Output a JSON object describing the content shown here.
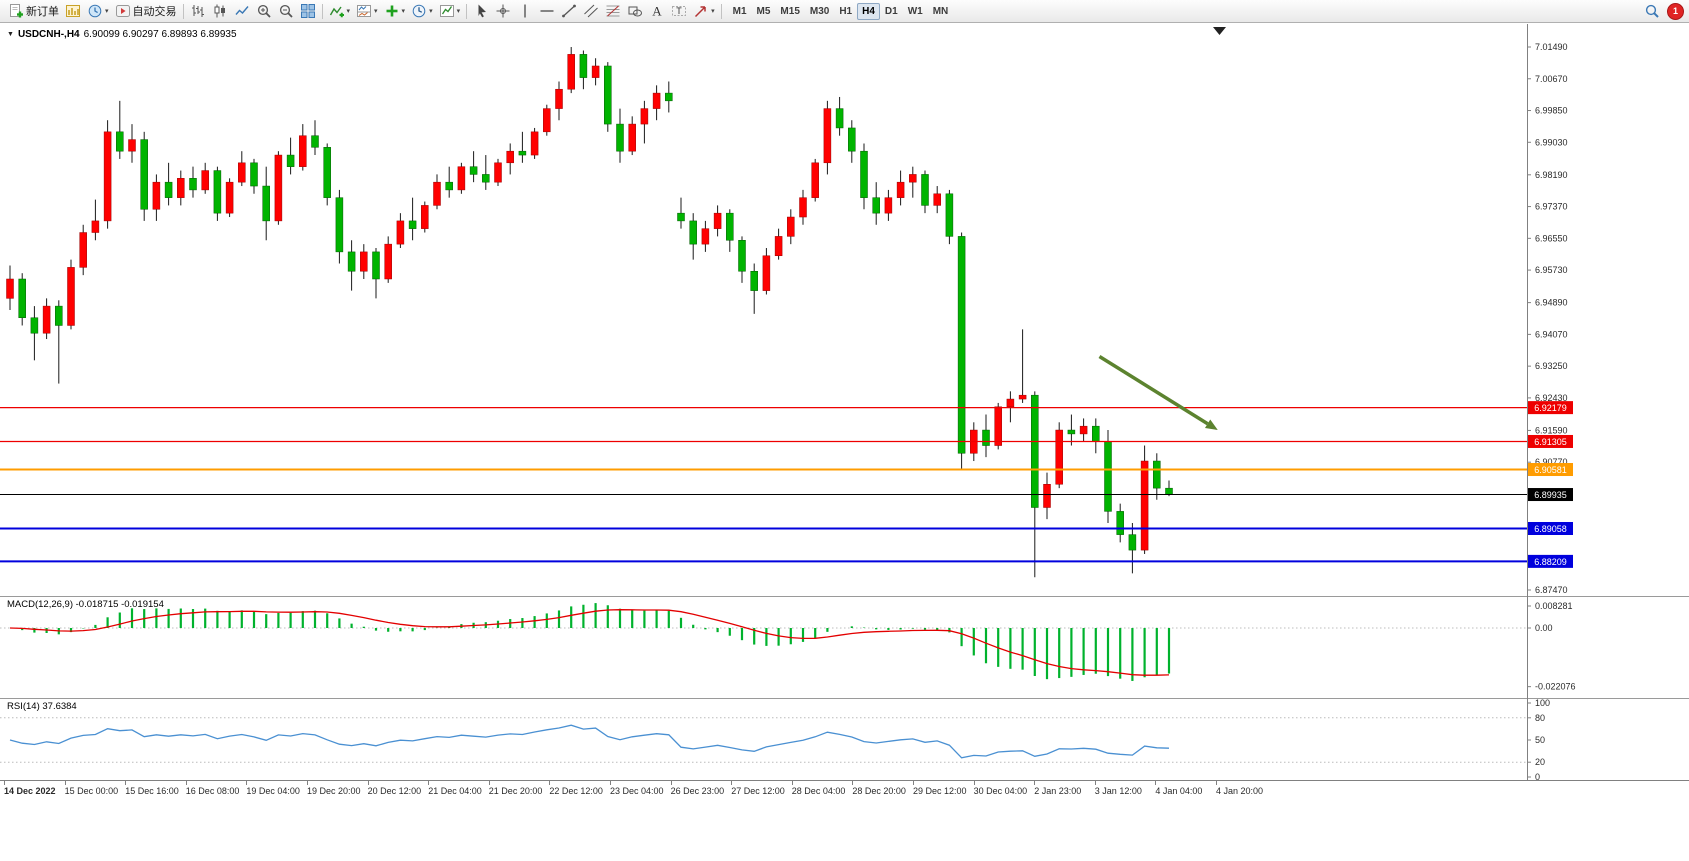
{
  "toolbar": {
    "buttons_left": [
      {
        "name": "new-order",
        "icon": "new-order",
        "label": "新订单"
      },
      {
        "name": "charts",
        "icon": "charts"
      },
      {
        "name": "profiles",
        "icon": "profiles",
        "caret": true
      },
      {
        "name": "auto-trading",
        "icon": "auto-trading",
        "label": "自动交易"
      },
      {
        "sep": true
      },
      {
        "name": "bar-chart",
        "icon": "bar-chart"
      },
      {
        "name": "candlestick-chart",
        "icon": "candlestick"
      },
      {
        "name": "line-chart",
        "icon": "line-chart"
      },
      {
        "name": "zoom-in",
        "icon": "zoom-in"
      },
      {
        "name": "zoom-out",
        "icon": "zoom-out"
      },
      {
        "name": "tile-windows",
        "icon": "tile-windows"
      },
      {
        "sep": true
      },
      {
        "name": "indicators",
        "icon": "indicators",
        "caret": true
      },
      {
        "name": "indicator-windows",
        "icon": "indicator-window",
        "caret": true
      },
      {
        "name": "add-object",
        "icon": "objects-add",
        "caret": true
      },
      {
        "name": "periods",
        "icon": "period",
        "caret": true
      },
      {
        "name": "templates",
        "icon": "templates",
        "caret": true
      },
      {
        "sep": true
      },
      {
        "name": "cursor",
        "icon": "cursor"
      },
      {
        "name": "crosshair",
        "icon": "crosshair"
      },
      {
        "name": "vertical-line",
        "icon": "vline"
      },
      {
        "name": "horizontal-line",
        "icon": "hline"
      },
      {
        "name": "trendline",
        "icon": "trendline"
      },
      {
        "name": "equidistant-channel",
        "icon": "channel"
      },
      {
        "name": "fibonacci",
        "icon": "fibonacci"
      },
      {
        "name": "shapes",
        "icon": "shapes"
      },
      {
        "name": "text",
        "icon": "text"
      },
      {
        "name": "text-label",
        "icon": "label"
      },
      {
        "name": "arrows",
        "icon": "arrows",
        "caret": true
      },
      {
        "sep": true
      }
    ],
    "timeframes": [
      "M1",
      "M5",
      "M15",
      "M30",
      "H1",
      "H4",
      "D1",
      "W1",
      "MN"
    ],
    "active_timeframe": "H4",
    "notification_count": "1"
  },
  "chart": {
    "title_symbol": "USDCNH-,H4",
    "title_ohlc": "6.90099 6.90297 6.89893 6.89935",
    "price_axis": [
      "7.01490",
      "7.00670",
      "6.99850",
      "6.99030",
      "6.98190",
      "6.97370",
      "6.96550",
      "6.95730",
      "6.94890",
      "6.94070",
      "6.93250",
      "6.92430",
      "6.91590",
      "6.90770",
      "6.87470"
    ],
    "time_axis": [
      "14 Dec 2022",
      "15 Dec 00:00",
      "15 Dec 16:00",
      "16 Dec 08:00",
      "19 Dec 04:00",
      "19 Dec 20:00",
      "20 Dec 12:00",
      "21 Dec 04:00",
      "21 Dec 20:00",
      "22 Dec 12:00",
      "23 Dec 04:00",
      "26 Dec 23:00",
      "27 Dec 12:00",
      "28 Dec 04:00",
      "28 Dec 20:00",
      "29 Dec 12:00",
      "30 Dec 04:00",
      "2 Jan 23:00",
      "3 Jan 12:00",
      "4 Jan 04:00",
      "4 Jan 20:00"
    ],
    "lines": [
      {
        "label": "6.92179",
        "value": 6.92179,
        "color": "#ee0000",
        "width": 1.2
      },
      {
        "label": "6.91305",
        "value": 6.91305,
        "color": "#ee0000",
        "width": 1.2
      },
      {
        "label": "6.90581",
        "value": 6.90581,
        "color": "#ff9c00",
        "width": 2
      },
      {
        "label": "6.89935",
        "value": 6.89935,
        "color": "#000000",
        "width": 1
      },
      {
        "label": "6.89058",
        "value": 6.89058,
        "color": "#0000dd",
        "width": 2
      },
      {
        "label": "6.88209",
        "value": 6.88209,
        "color": "#0000dd",
        "width": 2
      }
    ],
    "arrow": {
      "from": {
        "index": 89.3,
        "price": 6.935
      },
      "to": {
        "index": 99.0,
        "price": 6.916
      },
      "color": "#5c832f",
      "width": 3.5
    }
  },
  "chart_data": {
    "type": "candlestick",
    "symbol": "USDCNH-",
    "period": "H4",
    "ohlc": {
      "open": "6.90099",
      "high": "6.90297",
      "low": "6.89893",
      "close": "6.89935"
    },
    "up_color": "#ff0000",
    "down_color": "#00b400",
    "candles": [
      [
        6.95,
        6.9585,
        6.947,
        6.955
      ],
      [
        6.955,
        6.9565,
        6.943,
        6.945
      ],
      [
        6.945,
        6.948,
        6.934,
        6.941
      ],
      [
        6.941,
        6.95,
        6.9395,
        6.948
      ],
      [
        6.948,
        6.9495,
        6.928,
        6.943
      ],
      [
        6.943,
        6.96,
        6.942,
        6.958
      ],
      [
        6.958,
        6.969,
        6.956,
        6.967
      ],
      [
        6.967,
        6.9755,
        6.965,
        6.97
      ],
      [
        6.97,
        6.996,
        6.968,
        6.993
      ],
      [
        6.993,
        7.001,
        6.986,
        6.988
      ],
      [
        6.988,
        6.995,
        6.985,
        6.991
      ],
      [
        6.991,
        6.993,
        6.97,
        6.973
      ],
      [
        6.973,
        6.982,
        6.97,
        6.98
      ],
      [
        6.98,
        6.985,
        6.974,
        6.976
      ],
      [
        6.976,
        6.983,
        6.974,
        6.981
      ],
      [
        6.981,
        6.984,
        6.976,
        6.978
      ],
      [
        6.978,
        6.985,
        6.977,
        6.983
      ],
      [
        6.983,
        6.984,
        6.97,
        6.972
      ],
      [
        6.972,
        6.981,
        6.971,
        6.98
      ],
      [
        6.98,
        6.988,
        6.979,
        6.985
      ],
      [
        6.985,
        6.986,
        6.977,
        6.979
      ],
      [
        6.979,
        6.984,
        6.965,
        6.97
      ],
      [
        6.97,
        6.988,
        6.969,
        6.987
      ],
      [
        6.987,
        6.9915,
        6.982,
        6.984
      ],
      [
        6.984,
        6.995,
        6.983,
        6.992
      ],
      [
        6.992,
        6.996,
        6.987,
        6.989
      ],
      [
        6.989,
        6.99,
        6.974,
        6.976
      ],
      [
        6.976,
        6.978,
        6.959,
        6.962
      ],
      [
        6.962,
        6.965,
        6.952,
        6.957
      ],
      [
        6.957,
        6.964,
        6.955,
        6.962
      ],
      [
        6.962,
        6.963,
        6.95,
        6.955
      ],
      [
        6.955,
        6.966,
        6.954,
        6.964
      ],
      [
        6.964,
        6.972,
        6.963,
        6.97
      ],
      [
        6.97,
        6.976,
        6.965,
        6.968
      ],
      [
        6.968,
        6.975,
        6.967,
        6.974
      ],
      [
        6.974,
        6.982,
        6.973,
        6.98
      ],
      [
        6.98,
        6.984,
        6.976,
        6.978
      ],
      [
        6.978,
        6.985,
        6.977,
        6.984
      ],
      [
        6.984,
        6.988,
        6.98,
        6.982
      ],
      [
        6.982,
        6.987,
        6.978,
        6.98
      ],
      [
        6.98,
        6.986,
        6.979,
        6.985
      ],
      [
        6.985,
        6.99,
        6.982,
        6.988
      ],
      [
        6.988,
        6.993,
        6.985,
        6.987
      ],
      [
        6.987,
        6.994,
        6.986,
        6.993
      ],
      [
        6.993,
        7.0,
        6.992,
        6.999
      ],
      [
        6.999,
        7.006,
        6.996,
        7.004
      ],
      [
        7.004,
        7.0149,
        7.003,
        7.013
      ],
      [
        7.013,
        7.014,
        7.004,
        7.007
      ],
      [
        7.007,
        7.012,
        7.005,
        7.01
      ],
      [
        7.01,
        7.011,
        6.993,
        6.995
      ],
      [
        6.995,
        6.999,
        6.985,
        6.988
      ],
      [
        6.988,
        6.997,
        6.987,
        6.995
      ],
      [
        6.995,
        7.001,
        6.99,
        6.999
      ],
      [
        6.999,
        7.005,
        6.996,
        7.003
      ],
      [
        7.003,
        7.006,
        6.998,
        7.001
      ],
      [
        6.972,
        6.976,
        6.968,
        6.97
      ],
      [
        6.97,
        6.972,
        6.96,
        6.964
      ],
      [
        6.964,
        6.97,
        6.962,
        6.968
      ],
      [
        6.968,
        6.974,
        6.966,
        6.972
      ],
      [
        6.972,
        6.973,
        6.962,
        6.965
      ],
      [
        6.965,
        6.966,
        6.954,
        6.957
      ],
      [
        6.957,
        6.959,
        6.946,
        6.952
      ],
      [
        6.952,
        6.963,
        6.951,
        6.961
      ],
      [
        6.961,
        6.968,
        6.96,
        6.966
      ],
      [
        6.966,
        6.973,
        6.964,
        6.971
      ],
      [
        6.971,
        6.978,
        6.969,
        6.976
      ],
      [
        6.976,
        6.986,
        6.975,
        6.985
      ],
      [
        6.985,
        7.001,
        6.982,
        6.999
      ],
      [
        6.999,
        7.002,
        6.992,
        6.994
      ],
      [
        6.994,
        6.996,
        6.985,
        6.988
      ],
      [
        6.988,
        6.99,
        6.973,
        6.976
      ],
      [
        6.976,
        6.98,
        6.969,
        6.972
      ],
      [
        6.972,
        6.978,
        6.97,
        6.976
      ],
      [
        6.976,
        6.983,
        6.974,
        6.98
      ],
      [
        6.98,
        6.984,
        6.976,
        6.982
      ],
      [
        6.982,
        6.983,
        6.972,
        6.974
      ],
      [
        6.974,
        6.979,
        6.972,
        6.977
      ],
      [
        6.977,
        6.978,
        6.964,
        6.966
      ],
      [
        6.966,
        6.967,
        6.906,
        6.91
      ],
      [
        6.91,
        6.918,
        6.908,
        6.916
      ],
      [
        6.916,
        6.92,
        6.909,
        6.912
      ],
      [
        6.912,
        6.923,
        6.911,
        6.922
      ],
      [
        6.922,
        6.926,
        6.918,
        6.924
      ],
      [
        6.924,
        6.942,
        6.923,
        6.925
      ],
      [
        6.925,
        6.926,
        6.878,
        6.896
      ],
      [
        6.896,
        6.905,
        6.893,
        6.902
      ],
      [
        6.902,
        6.918,
        6.901,
        6.916
      ],
      [
        6.916,
        6.92,
        6.912,
        6.915
      ],
      [
        6.915,
        6.919,
        6.913,
        6.917
      ],
      [
        6.917,
        6.919,
        6.91,
        6.913
      ],
      [
        6.913,
        6.916,
        6.892,
        6.895
      ],
      [
        6.895,
        6.897,
        6.887,
        6.889
      ],
      [
        6.889,
        6.892,
        6.879,
        6.885
      ],
      [
        6.885,
        6.912,
        6.884,
        6.908
      ],
      [
        6.908,
        6.91,
        6.898,
        6.901
      ],
      [
        6.90099,
        6.90297,
        6.89893,
        6.89935
      ]
    ]
  },
  "macd": {
    "label": "MACD(12,26,9)",
    "values": "-0.018715 -0.019154",
    "fast": 12,
    "slow": 26,
    "signal": 9,
    "axis_labels": [
      "0.008281",
      "0.00",
      "-0.022076"
    ],
    "histogram_color": "#00b22d",
    "signal_color": "#e30000"
  },
  "rsi": {
    "label": "RSI(14)",
    "value": "37.6384",
    "period": 14,
    "axis_labels": [
      "100",
      "80",
      "50",
      "20",
      "0"
    ],
    "levels": [
      80,
      20
    ],
    "line_color": "#4a90d2"
  }
}
